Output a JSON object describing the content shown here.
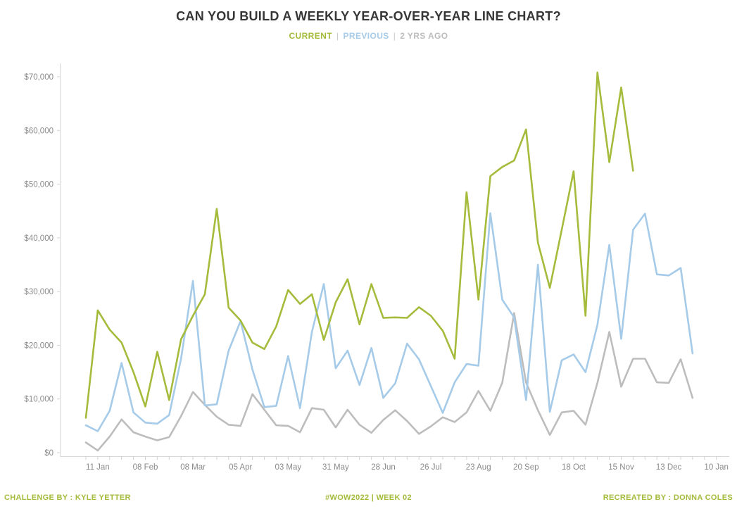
{
  "title": "CAN YOU BUILD A WEEKLY YEAR-OVER-YEAR LINE CHART?",
  "legend": {
    "separator": "|",
    "items": [
      {
        "label": "CURRENT",
        "color": "#a4bb3b"
      },
      {
        "label": "PREVIOUS",
        "color": "#a6cbe9"
      },
      {
        "label": "2 YRS AGO",
        "color": "#bdbdbd"
      }
    ]
  },
  "footer": {
    "left": "CHALLENGE BY : KYLE YETTER",
    "center": "#WOW2022  |  WEEK 02",
    "right": "RECREATED BY : DONNA COLES",
    "color": "#a4bb3b"
  },
  "chart_data": {
    "type": "line",
    "title": "CAN YOU BUILD A WEEKLY YEAR-OVER-YEAR LINE CHART?",
    "grid": false,
    "legend_position": "top-center",
    "x_axis": {
      "unit": "week",
      "weeks_total": 54,
      "tick_week_indices": [
        1,
        5,
        9,
        13,
        17,
        21,
        25,
        29,
        33,
        37,
        41,
        45,
        49,
        53
      ],
      "tick_labels": [
        "11 Jan",
        "08 Feb",
        "08 Mar",
        "05 Apr",
        "03 May",
        "31 May",
        "28 Jun",
        "26 Jul",
        "23 Aug",
        "20 Sep",
        "18 Oct",
        "15 Nov",
        "13 Dec",
        "10 Jan"
      ]
    },
    "y_axis": {
      "ylim": [
        0,
        70000
      ],
      "tick_values": [
        0,
        10000,
        20000,
        30000,
        40000,
        50000,
        60000,
        70000
      ],
      "tick_labels": [
        "$0",
        "$10,000",
        "$20,000",
        "$30,000",
        "$40,000",
        "$50,000",
        "$60,000",
        "$70,000"
      ]
    },
    "series": [
      {
        "name": "CURRENT",
        "color": "#a4bb3b",
        "start_week": 0,
        "values": [
          6500,
          26500,
          22900,
          20500,
          15000,
          8600,
          18800,
          9800,
          21100,
          25500,
          29500,
          45400,
          27000,
          24600,
          20500,
          19300,
          23500,
          30300,
          27700,
          29500,
          21000,
          28000,
          32300,
          23900,
          31400,
          25100,
          25200,
          25100,
          27100,
          25500,
          22700,
          17500,
          48500,
          28500,
          51500,
          53200,
          54400,
          60200,
          39100,
          30700,
          41500,
          52400,
          25500,
          70800,
          54100,
          68000,
          52500
        ]
      },
      {
        "name": "PREVIOUS",
        "color": "#a6cbe9",
        "start_week": 0,
        "values": [
          5100,
          4000,
          7800,
          16700,
          7500,
          5600,
          5400,
          7000,
          17500,
          32000,
          8800,
          9000,
          19000,
          24500,
          15500,
          8500,
          8700,
          18000,
          8300,
          22500,
          31400,
          15700,
          19000,
          12600,
          19500,
          10200,
          12900,
          20300,
          17400,
          12400,
          7400,
          13100,
          16500,
          16200,
          44600,
          28500,
          25200,
          9800,
          35000,
          7600,
          17200,
          18300,
          15000,
          23800,
          38700,
          21200,
          41500,
          44500,
          33200,
          33000,
          34400,
          18500
        ]
      },
      {
        "name": "2 YRS AGO",
        "color": "#bdbdbd",
        "start_week": 0,
        "values": [
          1900,
          400,
          3000,
          6200,
          3800,
          3000,
          2300,
          2900,
          6800,
          11300,
          8900,
          6700,
          5200,
          5000,
          10900,
          8000,
          5100,
          5000,
          3800,
          8300,
          8000,
          4700,
          8000,
          5200,
          3700,
          6100,
          7900,
          5900,
          3500,
          4900,
          6600,
          5700,
          7500,
          11500,
          7800,
          13000,
          26000,
          13100,
          7900,
          3300,
          7500,
          7800,
          5200,
          13000,
          22500,
          12300,
          17500,
          17500,
          13100,
          13000,
          17400,
          10200
        ]
      }
    ],
    "axis_text_color": "#8a8a8a",
    "axis_line_color": "#d7d7d7"
  }
}
